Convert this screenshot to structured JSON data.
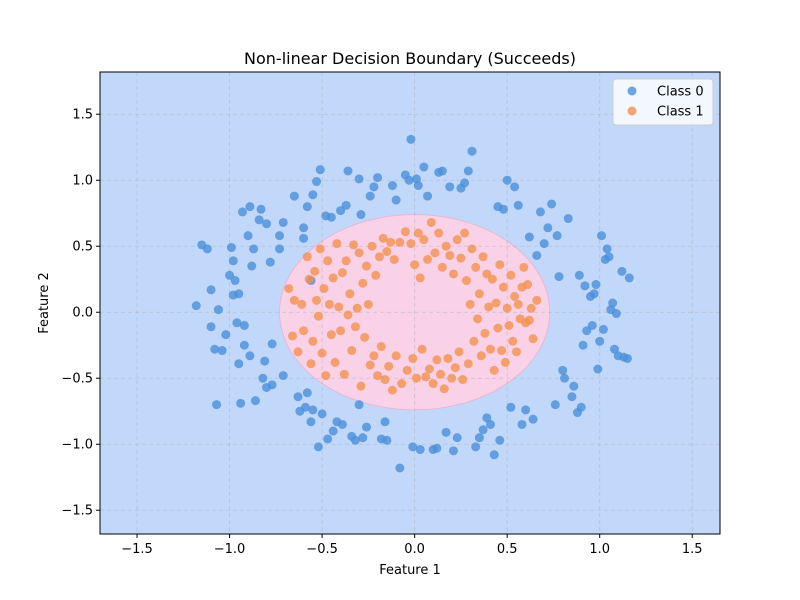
{
  "chart_data": {
    "type": "scatter",
    "title": "Non-linear Decision Boundary (Succeeds)",
    "xlabel": "Feature 1",
    "ylabel": "Feature 2",
    "xlim": [
      -1.7,
      1.65
    ],
    "ylim": [
      -1.68,
      1.82
    ],
    "xticks": [
      -1.5,
      -1.0,
      -0.5,
      0.0,
      0.5,
      1.0,
      1.5
    ],
    "yticks": [
      -1.5,
      -1.0,
      -0.5,
      0.0,
      0.5,
      1.0,
      1.5
    ],
    "xtick_labels": [
      "−1.5",
      "−1.0",
      "−0.5",
      "0.0",
      "0.5",
      "1.0",
      "1.5"
    ],
    "ytick_labels": [
      "−1.5",
      "−1.0",
      "−0.5",
      "0.0",
      "0.5",
      "1.0",
      "1.5"
    ],
    "grid": true,
    "legend_position": "top-right",
    "decision_regions": {
      "outer_color": "#c2d8fa",
      "inner_color": "#fad2e8",
      "inner_region": {
        "shape": "ellipse",
        "center": [
          0.0,
          0.0
        ],
        "x_radius": 0.73,
        "y_radius": 0.74
      }
    },
    "series": [
      {
        "name": "Class 0",
        "color": "#4a90d9",
        "points": [
          [
            -1.18,
            0.05
          ],
          [
            -1.15,
            0.51
          ],
          [
            -1.12,
            0.48
          ],
          [
            -1.1,
            0.17
          ],
          [
            -1.1,
            -0.11
          ],
          [
            -1.08,
            -0.28
          ],
          [
            -1.07,
            -0.7
          ],
          [
            -1.06,
            0.02
          ],
          [
            -1.04,
            -0.29
          ],
          [
            -1.02,
            -0.17
          ],
          [
            -1.0,
            0.28
          ],
          [
            -0.99,
            0.49
          ],
          [
            -0.98,
            0.39
          ],
          [
            -0.98,
            0.13
          ],
          [
            -0.97,
            0.24
          ],
          [
            -0.96,
            -0.08
          ],
          [
            -0.95,
            0.14
          ],
          [
            -0.95,
            -0.39
          ],
          [
            -0.94,
            -0.69
          ],
          [
            -0.93,
            0.76
          ],
          [
            -0.92,
            -0.1
          ],
          [
            -0.92,
            -0.25
          ],
          [
            -0.9,
            0.58
          ],
          [
            -0.89,
            0.8
          ],
          [
            -0.89,
            -0.33
          ],
          [
            -0.88,
            0.35
          ],
          [
            -0.87,
            0.48
          ],
          [
            -0.86,
            -0.67
          ],
          [
            -0.84,
            0.7
          ],
          [
            -0.83,
            0.78
          ],
          [
            -0.82,
            -0.5
          ],
          [
            -0.81,
            -0.37
          ],
          [
            -0.8,
            0.67
          ],
          [
            -0.8,
            -0.57
          ],
          [
            -0.78,
            0.38
          ],
          [
            -0.77,
            -0.55
          ],
          [
            -0.77,
            -0.24
          ],
          [
            -0.73,
            0.48
          ],
          [
            -0.73,
            0.58
          ],
          [
            -0.71,
            0.68
          ],
          [
            -0.71,
            -0.48
          ],
          [
            -0.65,
            0.88
          ],
          [
            -0.63,
            -0.64
          ],
          [
            -0.62,
            -0.75
          ],
          [
            -0.6,
            0.56
          ],
          [
            -0.6,
            0.64
          ],
          [
            -0.59,
            -0.72
          ],
          [
            -0.58,
            0.8
          ],
          [
            -0.58,
            -0.61
          ],
          [
            -0.56,
            0.24
          ],
          [
            -0.56,
            -0.83
          ],
          [
            -0.55,
            0.89
          ],
          [
            -0.55,
            -0.74
          ],
          [
            -0.53,
            0.99
          ],
          [
            -0.52,
            -1.02
          ],
          [
            -0.51,
            1.08
          ],
          [
            -0.5,
            -0.77
          ],
          [
            -0.48,
            0.73
          ],
          [
            -0.47,
            -0.96
          ],
          [
            -0.45,
            0.72
          ],
          [
            -0.44,
            -0.9
          ],
          [
            -0.42,
            -0.83
          ],
          [
            -0.4,
            0.77
          ],
          [
            -0.39,
            -0.85
          ],
          [
            -0.37,
            0.81
          ],
          [
            -0.36,
            1.07
          ],
          [
            -0.34,
            -0.94
          ],
          [
            -0.32,
            -0.97
          ],
          [
            -0.3,
            1.01
          ],
          [
            -0.3,
            -0.7
          ],
          [
            -0.29,
            0.74
          ],
          [
            -0.28,
            -0.95
          ],
          [
            -0.26,
            -0.87
          ],
          [
            -0.24,
            0.88
          ],
          [
            -0.22,
            0.95
          ],
          [
            -0.2,
            1.02
          ],
          [
            -0.18,
            -0.96
          ],
          [
            -0.16,
            -0.83
          ],
          [
            -0.15,
            -0.97
          ],
          [
            -0.12,
            0.96
          ],
          [
            -0.1,
            0.85
          ],
          [
            -0.08,
            -1.18
          ],
          [
            -0.05,
            1.04
          ],
          [
            -0.03,
            1.0
          ],
          [
            -0.02,
            1.31
          ],
          [
            -0.01,
            -1.02
          ],
          [
            0.01,
            1.01
          ],
          [
            0.02,
            0.96
          ],
          [
            0.03,
            -1.04
          ],
          [
            0.05,
            1.1
          ],
          [
            0.07,
            0.88
          ],
          [
            0.1,
            -1.04
          ],
          [
            0.12,
            -1.03
          ],
          [
            0.13,
            1.06
          ],
          [
            0.15,
            1.07
          ],
          [
            0.17,
            -0.91
          ],
          [
            0.19,
            0.95
          ],
          [
            0.21,
            -1.05
          ],
          [
            0.23,
            -0.95
          ],
          [
            0.25,
            0.94
          ],
          [
            0.27,
            0.98
          ],
          [
            0.29,
            1.07
          ],
          [
            0.31,
            1.22
          ],
          [
            0.33,
            -1.02
          ],
          [
            0.35,
            -0.95
          ],
          [
            0.37,
            -0.89
          ],
          [
            0.39,
            -0.8
          ],
          [
            0.41,
            -0.85
          ],
          [
            0.43,
            -1.08
          ],
          [
            0.45,
            0.8
          ],
          [
            0.46,
            -0.97
          ],
          [
            0.48,
            0.78
          ],
          [
            0.5,
            1.0
          ],
          [
            0.52,
            -0.72
          ],
          [
            0.54,
            0.95
          ],
          [
            0.56,
            0.81
          ],
          [
            0.58,
            -0.85
          ],
          [
            0.6,
            -0.74
          ],
          [
            0.62,
            0.57
          ],
          [
            0.64,
            -0.81
          ],
          [
            0.66,
            0.43
          ],
          [
            0.68,
            0.76
          ],
          [
            0.7,
            0.52
          ],
          [
            0.72,
            0.64
          ],
          [
            0.74,
            0.82
          ],
          [
            0.76,
            -0.7
          ],
          [
            0.77,
            0.58
          ],
          [
            0.78,
            0.27
          ],
          [
            0.8,
            -0.44
          ],
          [
            0.81,
            -0.5
          ],
          [
            0.83,
            0.71
          ],
          [
            0.85,
            -0.64
          ],
          [
            0.86,
            -0.56
          ],
          [
            0.88,
            -0.76
          ],
          [
            0.89,
            0.28
          ],
          [
            0.9,
            -0.72
          ],
          [
            0.91,
            -0.25
          ],
          [
            0.92,
            0.2
          ],
          [
            0.93,
            -0.14
          ],
          [
            0.95,
            0.12
          ],
          [
            0.96,
            -0.1
          ],
          [
            0.97,
            0.14
          ],
          [
            0.98,
            0.21
          ],
          [
            0.99,
            -0.43
          ],
          [
            1.0,
            -0.22
          ],
          [
            1.01,
            0.58
          ],
          [
            1.02,
            -0.13
          ],
          [
            1.03,
            0.4
          ],
          [
            1.04,
            0.48
          ],
          [
            1.05,
            0.42
          ],
          [
            1.06,
            0.02
          ],
          [
            1.07,
            0.07
          ],
          [
            1.08,
            -0.28
          ],
          [
            1.09,
            -0.01
          ],
          [
            1.1,
            -0.33
          ],
          [
            1.12,
            0.31
          ],
          [
            1.13,
            -0.34
          ],
          [
            1.15,
            -0.35
          ],
          [
            1.16,
            0.26
          ]
        ]
      },
      {
        "name": "Class 1",
        "color": "#f4914f",
        "points": [
          [
            -0.68,
            0.18
          ],
          [
            -0.66,
            -0.18
          ],
          [
            -0.65,
            0.09
          ],
          [
            -0.63,
            -0.3
          ],
          [
            -0.61,
            0.06
          ],
          [
            -0.6,
            -0.14
          ],
          [
            -0.58,
            0.42
          ],
          [
            -0.57,
            0.25
          ],
          [
            -0.56,
            -0.39
          ],
          [
            -0.55,
            -0.22
          ],
          [
            -0.54,
            0.31
          ],
          [
            -0.53,
            0.09
          ],
          [
            -0.52,
            -0.03
          ],
          [
            -0.51,
            0.48
          ],
          [
            -0.5,
            -0.31
          ],
          [
            -0.49,
            0.18
          ],
          [
            -0.48,
            -0.48
          ],
          [
            -0.47,
            0.39
          ],
          [
            -0.46,
            0.06
          ],
          [
            -0.45,
            -0.17
          ],
          [
            -0.44,
            0.26
          ],
          [
            -0.43,
            -0.38
          ],
          [
            -0.42,
            0.52
          ],
          [
            -0.41,
            0.04
          ],
          [
            -0.4,
            -0.14
          ],
          [
            -0.39,
            0.3
          ],
          [
            -0.38,
            -0.47
          ],
          [
            -0.37,
            0.39
          ],
          [
            -0.36,
            -0.02
          ],
          [
            -0.35,
            0.14
          ],
          [
            -0.34,
            -0.29
          ],
          [
            -0.33,
            0.51
          ],
          [
            -0.32,
            -0.11
          ],
          [
            -0.31,
            0.03
          ],
          [
            -0.3,
            0.45
          ],
          [
            -0.29,
            -0.56
          ],
          [
            -0.28,
            0.22
          ],
          [
            -0.27,
            -0.19
          ],
          [
            -0.26,
            0.35
          ],
          [
            -0.25,
            0.06
          ],
          [
            -0.24,
            -0.4
          ],
          [
            -0.23,
            0.5
          ],
          [
            -0.22,
            -0.33
          ],
          [
            -0.21,
            0.28
          ],
          [
            -0.2,
            -0.48
          ],
          [
            -0.19,
            0.42
          ],
          [
            -0.18,
            -0.26
          ],
          [
            -0.17,
            0.56
          ],
          [
            -0.16,
            -0.51
          ],
          [
            -0.15,
            0.46
          ],
          [
            -0.14,
            -0.41
          ],
          [
            -0.13,
            0.53
          ],
          [
            -0.12,
            -0.59
          ],
          [
            -0.11,
            0.4
          ],
          [
            -0.1,
            -0.33
          ],
          [
            -0.08,
            0.53
          ],
          [
            -0.07,
            -0.54
          ],
          [
            -0.05,
            0.61
          ],
          [
            -0.04,
            -0.44
          ],
          [
            -0.02,
            0.52
          ],
          [
            -0.01,
            -0.35
          ],
          [
            0.0,
            0.36
          ],
          [
            0.01,
            -0.5
          ],
          [
            0.02,
            0.6
          ],
          [
            0.03,
            0.26
          ],
          [
            0.04,
            -0.28
          ],
          [
            0.05,
            0.55
          ],
          [
            0.06,
            -0.49
          ],
          [
            0.07,
            0.4
          ],
          [
            0.08,
            -0.43
          ],
          [
            0.09,
            0.68
          ],
          [
            0.1,
            -0.54
          ],
          [
            0.11,
            0.45
          ],
          [
            0.12,
            -0.36
          ],
          [
            0.13,
            0.6
          ],
          [
            0.14,
            -0.47
          ],
          [
            0.15,
            0.34
          ],
          [
            0.16,
            -0.58
          ],
          [
            0.17,
            0.5
          ],
          [
            0.18,
            -0.35
          ],
          [
            0.19,
            0.43
          ],
          [
            0.2,
            -0.5
          ],
          [
            0.21,
            0.29
          ],
          [
            0.22,
            -0.42
          ],
          [
            0.23,
            0.55
          ],
          [
            0.24,
            -0.3
          ],
          [
            0.25,
            0.41
          ],
          [
            0.26,
            -0.51
          ],
          [
            0.27,
            0.6
          ],
          [
            0.28,
            0.24
          ],
          [
            0.29,
            -0.39
          ],
          [
            0.3,
            0.06
          ],
          [
            0.31,
            0.48
          ],
          [
            0.32,
            -0.22
          ],
          [
            0.33,
            0.34
          ],
          [
            0.34,
            -0.05
          ],
          [
            0.35,
            0.14
          ],
          [
            0.36,
            -0.33
          ],
          [
            0.37,
            0.42
          ],
          [
            0.38,
            -0.16
          ],
          [
            0.39,
            0.29
          ],
          [
            0.4,
            0.04
          ],
          [
            0.41,
            -0.28
          ],
          [
            0.42,
            0.25
          ],
          [
            0.43,
            -0.44
          ],
          [
            0.44,
            0.07
          ],
          [
            0.45,
            -0.12
          ],
          [
            0.46,
            0.36
          ],
          [
            0.47,
            -0.29
          ],
          [
            0.48,
            0.19
          ],
          [
            0.49,
            -0.38
          ],
          [
            0.5,
            0.03
          ],
          [
            0.51,
            -0.1
          ],
          [
            0.52,
            0.28
          ],
          [
            0.53,
            -0.22
          ],
          [
            0.54,
            0.12
          ],
          [
            0.55,
            -0.3
          ],
          [
            0.56,
            0.06
          ],
          [
            0.57,
            -0.05
          ],
          [
            0.58,
            0.19
          ],
          [
            0.59,
            0.34
          ],
          [
            0.6,
            -0.08
          ],
          [
            0.61,
            0.21
          ],
          [
            0.62,
            -0.06
          ],
          [
            0.63,
            0.03
          ],
          [
            0.64,
            -0.2
          ],
          [
            0.66,
            0.09
          ]
        ]
      }
    ]
  }
}
